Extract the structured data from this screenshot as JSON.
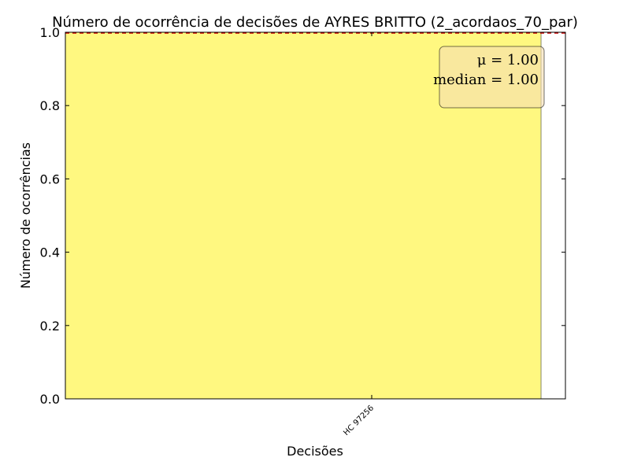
{
  "chart_data": {
    "type": "bar",
    "title": "Número de ocorrência de decisões de AYRES BRITTO (2_acordaos_70_par)",
    "xlabel": "Decisões",
    "ylabel": "Número de ocorrências",
    "categories": [
      "HC 97256"
    ],
    "values": [
      1
    ],
    "ylim": [
      0,
      1.0
    ],
    "yticks": [
      "0.0",
      "0.2",
      "0.4",
      "0.6",
      "0.8",
      "1.0"
    ],
    "grid": false,
    "bar_color": "#fff880",
    "mean_line_color": "#cc0000",
    "stats_box": {
      "mean_text": "μ = 1.00",
      "median_text": "median = 1.00",
      "placement": "top-right",
      "face_color": "#f5deb3"
    }
  }
}
